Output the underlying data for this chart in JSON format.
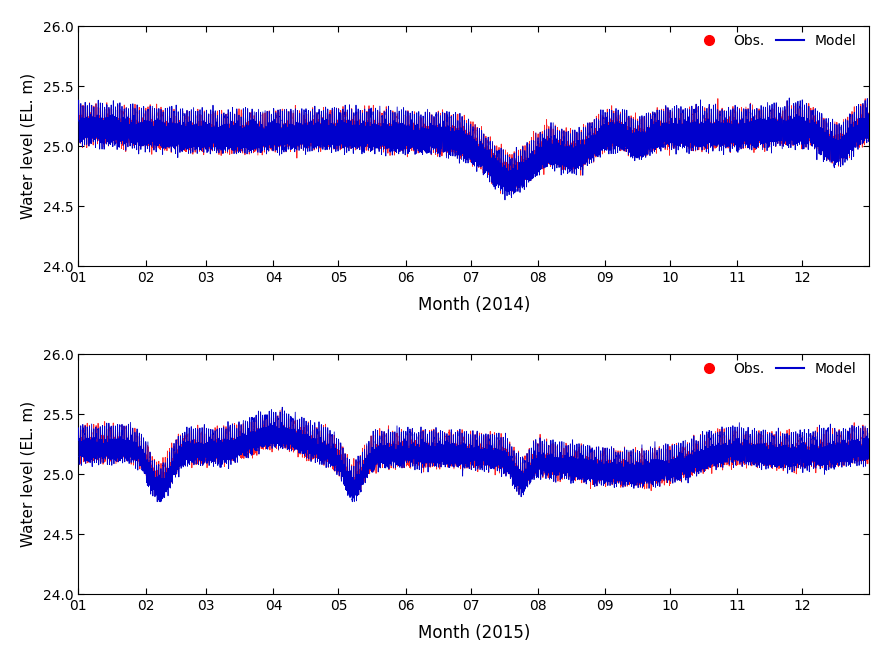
{
  "ylim": [
    24.0,
    26.0
  ],
  "yticks": [
    24.0,
    24.5,
    25.0,
    25.5,
    26.0
  ],
  "ylabel": "Water level (EL. m)",
  "xlabel_2014": "Month (2014)",
  "xlabel_2015": "Month (2015)",
  "month_labels": [
    "01",
    "02",
    "03",
    "04",
    "05",
    "06",
    "07",
    "08",
    "09",
    "10",
    "11",
    "12"
  ],
  "obs_color": "#FF0000",
  "model_color": "#0000CC",
  "obs_label": "Obs.",
  "model_label": "Model",
  "n_points": 8760,
  "legend_fontsize": 10,
  "axis_fontsize": 11,
  "tick_fontsize": 10
}
